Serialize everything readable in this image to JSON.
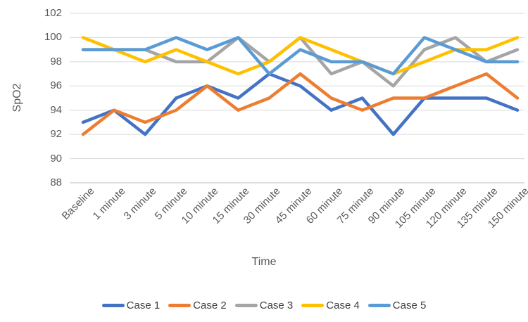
{
  "chart_data": {
    "type": "line",
    "title": "",
    "xlabel": "Time",
    "ylabel": "SpO2",
    "ylim": [
      88,
      102
    ],
    "yticks": [
      88,
      90,
      92,
      94,
      96,
      98,
      100,
      102
    ],
    "grid": true,
    "legend_position": "bottom",
    "categories": [
      "Baseline",
      "1 minute",
      "3 minute",
      "5 minute",
      "10 minute",
      "15 minute",
      "30 minute",
      "45 minute",
      "60 minute",
      "75 minute",
      "90 minute",
      "105 minute",
      "120 minute",
      "135 minute",
      "150 minute"
    ],
    "series": [
      {
        "name": "Case 1",
        "color": "#4472C4",
        "values": [
          93,
          94,
          92,
          95,
          96,
          95,
          97,
          96,
          94,
          95,
          92,
          95,
          95,
          95,
          94
        ]
      },
      {
        "name": "Case 2",
        "color": "#ED7D31",
        "values": [
          92,
          94,
          93,
          94,
          96,
          94,
          95,
          97,
          95,
          94,
          95,
          95,
          96,
          97,
          95
        ]
      },
      {
        "name": "Case 3",
        "color": "#A5A5A5",
        "values": [
          99,
          99,
          99,
          98,
          98,
          100,
          98,
          100,
          97,
          98,
          96,
          99,
          100,
          98,
          99
        ]
      },
      {
        "name": "Case 4",
        "color": "#FFC000",
        "values": [
          100,
          99,
          98,
          99,
          98,
          97,
          98,
          100,
          99,
          98,
          97,
          98,
          99,
          99,
          100
        ]
      },
      {
        "name": "Case 5",
        "color": "#5B9BD5",
        "values": [
          99,
          99,
          99,
          100,
          99,
          100,
          97,
          99,
          98,
          98,
          97,
          100,
          99,
          98,
          98
        ]
      }
    ],
    "colors": {
      "gridline": "#D9D9D9",
      "axis_line": "#BFBFBF",
      "tick_text": "#595959"
    }
  }
}
